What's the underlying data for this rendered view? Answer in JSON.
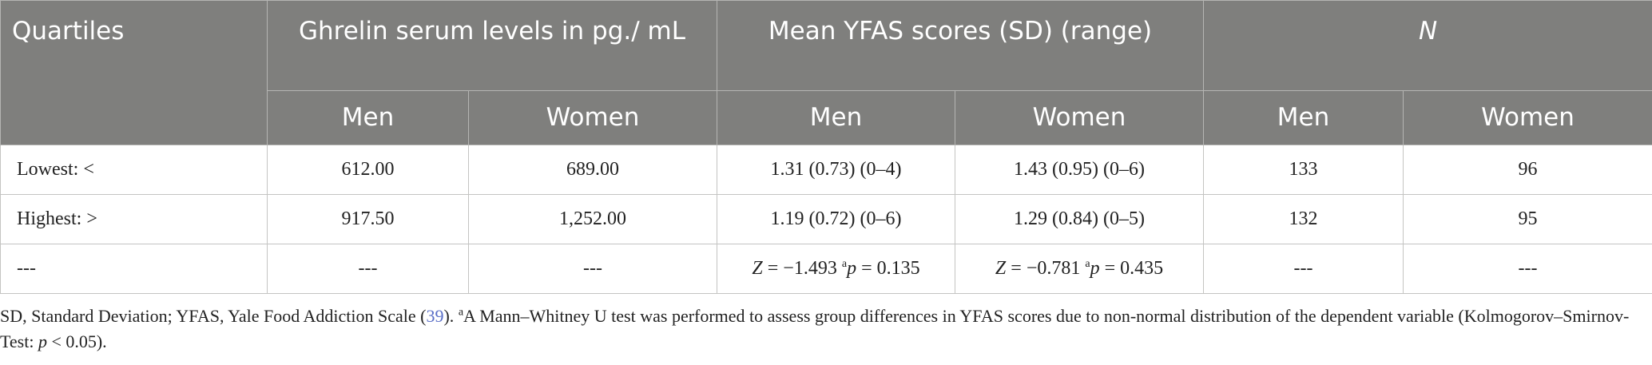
{
  "header": {
    "quartiles": "Quartiles",
    "ghrelin": "Ghrelin serum levels in pg./ mL",
    "mean_yfas": "Mean YFAS scores (SD) (range)",
    "n": "N",
    "sub": [
      "Men",
      "Women",
      "Men",
      "Women",
      "Men",
      "Women"
    ]
  },
  "rows": [
    {
      "label": "Lowest: <",
      "ghrelin_men": "612.00",
      "ghrelin_women": "689.00",
      "yfas_men": "1.31 (0.73) (0–4)",
      "yfas_women": "1.43 (0.95) (0–6)",
      "n_men": "133",
      "n_women": "96"
    },
    {
      "label": "Highest: >",
      "ghrelin_men": "917.50",
      "ghrelin_women": "1,252.00",
      "yfas_men": "1.19 (0.72) (0–6)",
      "yfas_women": "1.29 (0.84) (0–5)",
      "n_men": "132",
      "n_women": "95"
    }
  ],
  "test_row": {
    "label": "---",
    "ghrelin_men": "---",
    "ghrelin_women": "---",
    "men": {
      "z_symbol": "Z",
      "z_value": " = −1.493 ",
      "sup": "a",
      "p_symbol": "p",
      "p_value": " = 0.135"
    },
    "women": {
      "z_symbol": "Z",
      "z_value": " = −0.781 ",
      "sup": "a",
      "p_symbol": "p",
      "p_value": " = 0.435"
    },
    "n_men": "---",
    "n_women": "---"
  },
  "footnote": {
    "part1": "SD, Standard Deviation; YFAS, Yale Food Addiction Scale (",
    "ref": "39",
    "part2": "). ",
    "sup": "a",
    "part3": "A Mann–Whitney U test was performed to assess group differences in YFAS scores due to non-normal distribution of the dependent variable (Kolmogorov–Smirnov-Test: ",
    "p_symbol": "p",
    "part4": " < 0.05)."
  },
  "colors": {
    "header_bg": "#7f7f7d",
    "header_text": "#ffffff",
    "ref_link": "#5a6fc7"
  }
}
